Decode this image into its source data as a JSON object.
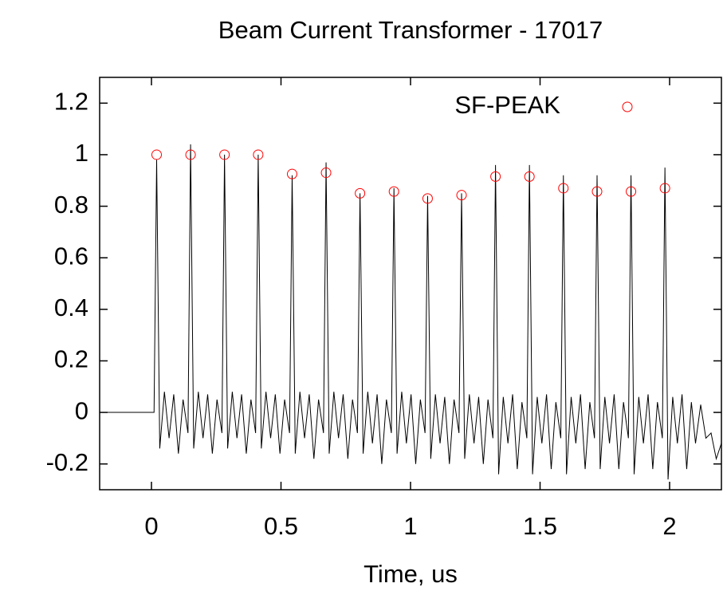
{
  "chart_data": {
    "type": "line",
    "title": "Beam Current Transformer - 17017",
    "xlabel": "Time, us",
    "xlim": [
      -0.2,
      2.2
    ],
    "ylim": [
      -0.3,
      1.3
    ],
    "xticks": [
      0,
      0.5,
      1,
      1.5,
      2
    ],
    "yticks": [
      -0.2,
      0,
      0.2,
      0.4,
      0.6,
      0.8,
      1,
      1.2
    ],
    "legend": "upper right",
    "series": [
      {
        "color": "#000000",
        "marker": "none",
        "x": [
          -0.2,
          0,
          0.01,
          0.02,
          0.032,
          0.05,
          0.068,
          0.086,
          0.104,
          0.122,
          0.141,
          0.151,
          0.163,
          0.181,
          0.199,
          0.217,
          0.235,
          0.253,
          0.272,
          0.282,
          0.294,
          0.312,
          0.33,
          0.348,
          0.366,
          0.384,
          0.402,
          0.412,
          0.424,
          0.442,
          0.46,
          0.478,
          0.496,
          0.514,
          0.533,
          0.543,
          0.555,
          0.573,
          0.591,
          0.609,
          0.627,
          0.645,
          0.664,
          0.674,
          0.686,
          0.704,
          0.722,
          0.74,
          0.758,
          0.776,
          0.795,
          0.805,
          0.817,
          0.835,
          0.853,
          0.871,
          0.889,
          0.907,
          0.926,
          0.936,
          0.948,
          0.966,
          0.984,
          1.002,
          1.02,
          1.038,
          1.056,
          1.066,
          1.078,
          1.096,
          1.114,
          1.132,
          1.15,
          1.168,
          1.187,
          1.197,
          1.209,
          1.227,
          1.245,
          1.263,
          1.281,
          1.299,
          1.318,
          1.328,
          1.34,
          1.358,
          1.376,
          1.394,
          1.412,
          1.43,
          1.449,
          1.459,
          1.471,
          1.489,
          1.507,
          1.525,
          1.543,
          1.561,
          1.58,
          1.59,
          1.602,
          1.62,
          1.638,
          1.656,
          1.674,
          1.692,
          1.71,
          1.72,
          1.732,
          1.75,
          1.768,
          1.786,
          1.804,
          1.822,
          1.841,
          1.851,
          1.863,
          1.881,
          1.899,
          1.917,
          1.935,
          1.953,
          1.972,
          1.982,
          1.994,
          2.012,
          2.03,
          2.048,
          2.066,
          2.084,
          2.1,
          2.12,
          2.14,
          2.16,
          2.18,
          2.2
        ],
        "values": [
          0,
          0,
          0,
          0.98,
          -0.14,
          0.08,
          -0.1,
          0.07,
          -0.16,
          0.05,
          -0.08,
          1.04,
          -0.14,
          0.08,
          -0.1,
          0.07,
          -0.16,
          0.05,
          -0.08,
          1.0,
          -0.14,
          0.08,
          -0.1,
          0.07,
          -0.16,
          0.05,
          -0.08,
          1.0,
          -0.14,
          0.08,
          -0.1,
          0.07,
          -0.16,
          0.05,
          -0.08,
          0.92,
          -0.16,
          0.08,
          -0.1,
          0.07,
          -0.18,
          0.05,
          -0.08,
          0.97,
          -0.16,
          0.08,
          -0.1,
          0.07,
          -0.18,
          0.05,
          -0.08,
          0.85,
          -0.16,
          0.08,
          -0.12,
          0.07,
          -0.2,
          0.05,
          -0.08,
          0.87,
          -0.16,
          0.08,
          -0.12,
          0.07,
          -0.2,
          0.05,
          -0.08,
          0.84,
          -0.18,
          0.07,
          -0.12,
          0.06,
          -0.2,
          0.05,
          -0.08,
          0.85,
          -0.18,
          0.07,
          -0.12,
          0.06,
          -0.2,
          0.05,
          -0.1,
          0.96,
          -0.24,
          0.06,
          -0.12,
          0.07,
          -0.22,
          0.04,
          -0.1,
          0.96,
          -0.24,
          0.06,
          -0.12,
          0.07,
          -0.22,
          0.04,
          -0.1,
          0.92,
          -0.24,
          0.06,
          -0.12,
          0.07,
          -0.22,
          0.04,
          -0.1,
          0.92,
          -0.22,
          0.06,
          -0.12,
          0.07,
          -0.22,
          0.04,
          -0.1,
          0.92,
          -0.24,
          0.06,
          -0.12,
          0.07,
          -0.22,
          0.04,
          -0.1,
          0.95,
          -0.26,
          0.06,
          -0.12,
          0.07,
          -0.22,
          0.04,
          -0.12,
          0.03,
          -0.1,
          -0.08,
          -0.18,
          -0.12
        ]
      },
      {
        "name": "SF-PEAK",
        "color": "#ff0000",
        "marker": "circle",
        "x": [
          0.02,
          0.151,
          0.282,
          0.412,
          0.543,
          0.674,
          0.805,
          0.936,
          1.066,
          1.197,
          1.328,
          1.459,
          1.59,
          1.72,
          1.851,
          1.982
        ],
        "values": [
          1,
          1,
          1,
          1,
          0.925,
          0.93,
          0.85,
          0.857,
          0.83,
          0.843,
          0.915,
          0.915,
          0.87,
          0.857,
          0.857,
          0.87
        ]
      }
    ]
  }
}
